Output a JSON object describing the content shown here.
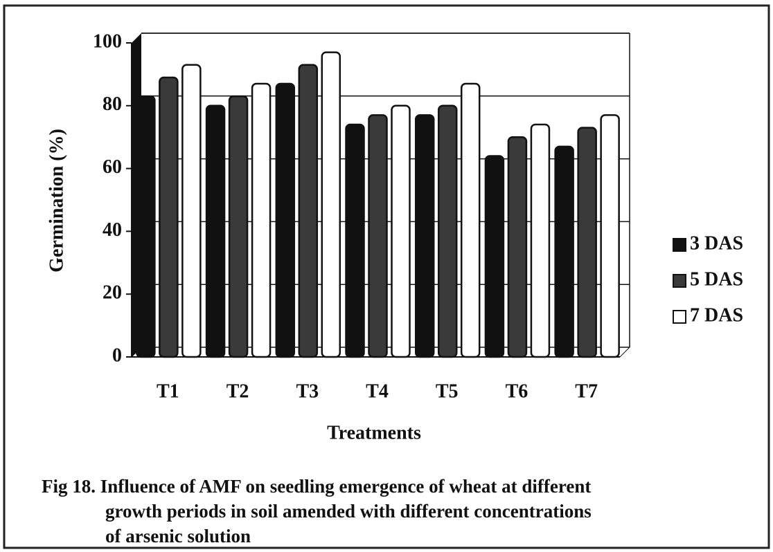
{
  "chart_data": {
    "type": "bar",
    "categories": [
      "T1",
      "T2",
      "T3",
      "T4",
      "T5",
      "T6",
      "T7"
    ],
    "series": [
      {
        "name": "3 DAS",
        "color": "#111111",
        "values": [
          83,
          80,
          87,
          74,
          77,
          64,
          67
        ]
      },
      {
        "name": "5 DAS",
        "color": "#3a3a3a",
        "values": [
          89,
          83,
          93,
          77,
          80,
          70,
          73
        ]
      },
      {
        "name": "7 DAS",
        "color": "#ffffff",
        "values": [
          93,
          87,
          97,
          80,
          87,
          74,
          77
        ]
      }
    ],
    "ylim": [
      0,
      100
    ],
    "yticks": [
      0,
      20,
      40,
      60,
      80,
      100
    ],
    "grid": true,
    "xlabel": "Treatments",
    "ylabel": "Germination (%)",
    "legend": "right",
    "caption": [
      "Fig 18. Influence of AMF on seedling emergence of wheat at different",
      "growth periods in soil amended with different concentrations",
      "of arsenic solution"
    ]
  }
}
